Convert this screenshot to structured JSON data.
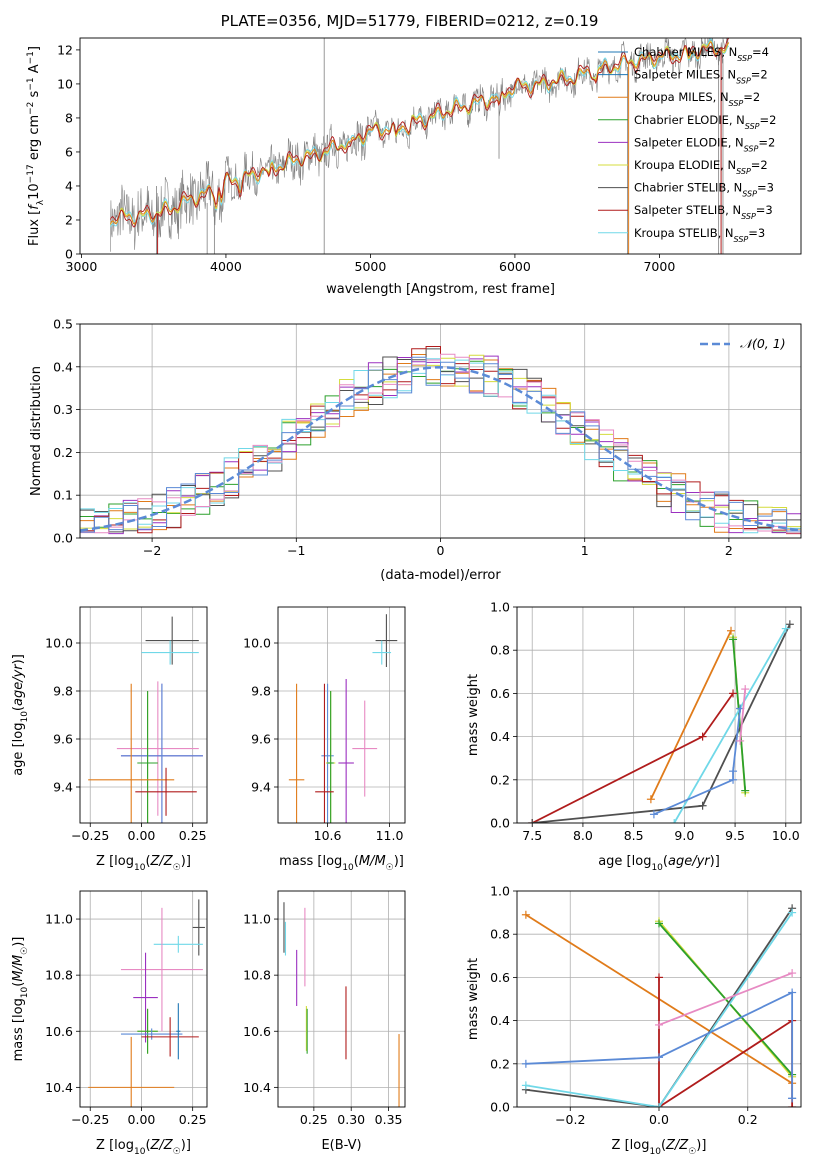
{
  "figure": {
    "title": "PLATE=0356, MJD=51779, FIBERID=0212, z=0.19"
  },
  "colors": {
    "chabrier_miles": "#1f77b4",
    "salpeter_miles": "#1f77b4",
    "kroupa_miles": "#e07b1a",
    "chabrier_elodie": "#2ca02c",
    "salpeter_elodie": "#9b30c0",
    "kroupa_elodie": "#d4dc3c",
    "chabrier_stelib": "#505050",
    "salpeter_stelib": "#b01c1c",
    "kroupa_stelib": "#70d8e8",
    "pink": "#e78ac3",
    "blue": "#5b8ad6",
    "gray_spectrum": "#808080",
    "normal_curve": "#5b8ad6"
  },
  "chart_data": [
    {
      "type": "line",
      "id": "spectrum",
      "xlabel": "wavelength [Angstrom, rest frame]",
      "ylabel": "Flux [f_λ 10^-17 erg cm^-2 s^-1 A^-1]",
      "xlim": [
        2990,
        7980
      ],
      "ylim": [
        0,
        12.7
      ],
      "xticks": [
        3000,
        4000,
        5000,
        6000,
        7000
      ],
      "yticks": [
        0,
        2,
        4,
        6,
        8,
        10,
        12
      ],
      "grid": false,
      "legend_position": "top-right",
      "legend": [
        "Chabrier MILES, N_SSP=4",
        "Salpeter MILES, N_SSP=2",
        "Kroupa MILES, N_SSP=2",
        "Chabrier ELODIE, N_SSP=2",
        "Salpeter ELODIE, N_SSP=2",
        "Kroupa ELODIE, N_SSP=2",
        "Chabrier STELIB, N_SSP=3",
        "Salpeter STELIB, N_SSP=3",
        "Kroupa STELIB, N_SSP=3"
      ],
      "continuum": {
        "x": [
          3200,
          3300,
          3500,
          3700,
          3900,
          4000,
          4200,
          4400,
          4600,
          4800,
          5000,
          5200,
          5400,
          5600,
          5800,
          6000,
          6200,
          6400,
          6600,
          6800,
          7000,
          7200,
          7400,
          7500
        ],
        "y": [
          2.0,
          2.2,
          2.3,
          3.0,
          3.7,
          4.2,
          4.7,
          5.3,
          5.8,
          6.4,
          7.2,
          7.5,
          8.0,
          8.6,
          9.0,
          9.8,
          10.0,
          10.4,
          10.9,
          11.3,
          11.6,
          11.8,
          12.2,
          11.9
        ]
      }
    },
    {
      "type": "bar",
      "id": "residual_histogram",
      "xlabel": "(data-model)/error",
      "ylabel": "Normed distribution",
      "xlim": [
        -2.5,
        2.5
      ],
      "ylim": [
        0,
        0.5
      ],
      "xticks": [
        -2,
        -1,
        0,
        1,
        2
      ],
      "yticks": [
        0.0,
        0.1,
        0.2,
        0.3,
        0.4,
        0.5
      ],
      "grid": true,
      "legend_position": "top-right",
      "legend": [
        "𝒩(0, 1)"
      ],
      "reference_curve": {
        "mean": 0,
        "sigma": 1
      }
    },
    {
      "type": "scatter",
      "id": "age_vs_Z",
      "xlabel": "Z [log10(Z/Z☉)]",
      "ylabel": "age [log10(age/yr)]",
      "xlim": [
        -0.3,
        0.32
      ],
      "ylim": [
        9.25,
        10.15
      ],
      "xticks": [
        -0.25,
        0.0,
        0.25
      ],
      "yticks": [
        9.4,
        9.6,
        9.8,
        10.0
      ],
      "grid": true,
      "points": [
        {
          "series": "chabrier_stelib",
          "x": 0.15,
          "y": 10.01,
          "xerr": 0.13,
          "yerr": 0.1
        },
        {
          "series": "kroupa_stelib",
          "x": 0.14,
          "y": 9.96,
          "xerr": 0.14,
          "yerr": 0.05
        },
        {
          "series": "pink",
          "x": 0.08,
          "y": 9.56,
          "xerr": 0.2,
          "yerr": 0.28
        },
        {
          "series": "salpeter_elodie",
          "x": 0.1,
          "y": 9.53,
          "xerr": 0.2,
          "yerr": 0.3
        },
        {
          "series": "blue",
          "x": 0.1,
          "y": 9.53,
          "xerr": 0.2,
          "yerr": 0.3
        },
        {
          "series": "kroupa_elodie",
          "x": 0.03,
          "y": 9.5,
          "xerr": 0.05,
          "yerr": 0.3
        },
        {
          "series": "chabrier_elodie",
          "x": 0.03,
          "y": 9.5,
          "xerr": 0.05,
          "yerr": 0.3
        },
        {
          "series": "kroupa_miles",
          "x": -0.05,
          "y": 9.43,
          "xerr": 0.21,
          "yerr": 0.4
        },
        {
          "series": "salpeter_stelib",
          "x": 0.12,
          "y": 9.38,
          "xerr": 0.15,
          "yerr": 0.1
        }
      ]
    },
    {
      "type": "scatter",
      "id": "age_vs_mass",
      "xlabel": "mass [log10(M/M☉)]",
      "ylabel": "",
      "xlim": [
        10.28,
        11.1
      ],
      "ylim": [
        9.25,
        10.15
      ],
      "xticks": [
        10.6,
        11.0
      ],
      "yticks": [
        9.4,
        9.6,
        9.8,
        10.0
      ],
      "grid": true,
      "points": [
        {
          "series": "chabrier_stelib",
          "x": 10.98,
          "y": 10.01,
          "xerr": 0.07,
          "yerr": 0.11
        },
        {
          "series": "kroupa_stelib",
          "x": 10.95,
          "y": 9.96,
          "xerr": 0.06,
          "yerr": 0.05
        },
        {
          "series": "pink",
          "x": 10.84,
          "y": 9.56,
          "xerr": 0.08,
          "yerr": 0.2
        },
        {
          "series": "salpeter_elodie",
          "x": 10.72,
          "y": 9.5,
          "xerr": 0.05,
          "yerr": 0.35
        },
        {
          "series": "blue",
          "x": 10.6,
          "y": 9.53,
          "xerr": 0.04,
          "yerr": 0.3
        },
        {
          "series": "kroupa_elodie",
          "x": 10.62,
          "y": 9.5,
          "xerr": 0.03,
          "yerr": 0.3
        },
        {
          "series": "chabrier_elodie",
          "x": 10.62,
          "y": 9.5,
          "xerr": 0.02,
          "yerr": 0.3
        },
        {
          "series": "kroupa_miles",
          "x": 10.4,
          "y": 9.43,
          "xerr": 0.05,
          "yerr": 0.4
        },
        {
          "series": "salpeter_stelib",
          "x": 10.58,
          "y": 9.38,
          "xerr": 0.06,
          "yerr": 0.45
        }
      ]
    },
    {
      "type": "line",
      "id": "mass_weight_vs_age",
      "xlabel": "age [log10(age/yr)]",
      "ylabel": "mass weight",
      "xlim": [
        7.35,
        10.15
      ],
      "ylim": [
        0,
        1.0
      ],
      "xticks": [
        7.5,
        8.0,
        8.5,
        9.0,
        9.5,
        10.0
      ],
      "yticks": [
        0.0,
        0.2,
        0.4,
        0.6,
        0.8,
        1.0
      ],
      "grid": true,
      "series": [
        {
          "series": "kroupa_miles",
          "x": [
            8.67,
            9.46
          ],
          "y": [
            0.11,
            0.89
          ]
        },
        {
          "series": "kroupa_elodie",
          "x": [
            9.48,
            9.6
          ],
          "y": [
            0.86,
            0.14
          ]
        },
        {
          "series": "chabrier_elodie",
          "x": [
            9.48,
            9.6
          ],
          "y": [
            0.85,
            0.15
          ]
        },
        {
          "series": "salpeter_stelib",
          "x": [
            7.5,
            9.18,
            9.48
          ],
          "y": [
            0.0,
            0.4,
            0.6
          ]
        },
        {
          "series": "chabrier_stelib",
          "x": [
            7.5,
            9.18,
            10.04
          ],
          "y": [
            0.0,
            0.08,
            0.92
          ]
        },
        {
          "series": "kroupa_stelib",
          "x": [
            8.9,
            10.0
          ],
          "y": [
            0.0,
            0.9
          ]
        },
        {
          "series": "blue",
          "x": [
            8.7,
            9.48,
            9.48,
            9.55,
            9.55
          ],
          "y": [
            0.04,
            0.2,
            0.24,
            0.53,
            0.53
          ]
        },
        {
          "series": "pink",
          "x": [
            9.55,
            9.6
          ],
          "y": [
            0.38,
            0.62
          ]
        }
      ]
    },
    {
      "type": "scatter",
      "id": "mass_vs_Z",
      "xlabel": "Z [log10(Z/Z☉)]",
      "ylabel": "mass [log10(M/M☉)]",
      "xlim": [
        -0.3,
        0.32
      ],
      "ylim": [
        10.33,
        11.1
      ],
      "xticks": [
        -0.25,
        0.0,
        0.25
      ],
      "yticks": [
        10.4,
        10.6,
        10.8,
        11.0
      ],
      "grid": true,
      "points": [
        {
          "series": "chabrier_stelib",
          "x": 0.28,
          "y": 10.97,
          "xerr": 0.03,
          "yerr": 0.1
        },
        {
          "series": "kroupa_stelib",
          "x": 0.18,
          "y": 10.91,
          "xerr": 0.12,
          "yerr": 0.03
        },
        {
          "series": "pink",
          "x": 0.1,
          "y": 10.82,
          "xerr": 0.2,
          "yerr": 0.22
        },
        {
          "series": "salpeter_elodie",
          "x": 0.02,
          "y": 10.72,
          "xerr": 0.06,
          "yerr": 0.16
        },
        {
          "series": "kroupa_elodie",
          "x": 0.03,
          "y": 10.6,
          "xerr": 0.05,
          "yerr": 0.08
        },
        {
          "series": "chabrier_elodie",
          "x": 0.03,
          "y": 10.6,
          "xerr": 0.05,
          "yerr": 0.08
        },
        {
          "series": "blue",
          "x": 0.05,
          "y": 10.59,
          "xerr": 0.15,
          "yerr": 0.02
        },
        {
          "series": "salpeter_stelib",
          "x": 0.14,
          "y": 10.58,
          "xerr": 0.14,
          "yerr": 0.07
        },
        {
          "series": "chabrier_miles",
          "x": 0.18,
          "y": 10.6,
          "xerr": 0.01,
          "yerr": 0.1
        },
        {
          "series": "kroupa_miles",
          "x": -0.05,
          "y": 10.4,
          "xerr": 0.21,
          "yerr": 0.18
        }
      ]
    },
    {
      "type": "scatter",
      "id": "mass_vs_ebv",
      "xlabel": "E(B-V)",
      "ylabel": "",
      "xlim": [
        0.202,
        0.372
      ],
      "ylim": [
        10.33,
        11.1
      ],
      "xticks": [
        0.25,
        0.3,
        0.35
      ],
      "yticks": [
        10.4,
        10.6,
        10.8,
        11.0
      ],
      "grid": true,
      "points": [
        {
          "series": "chabrier_stelib",
          "x": 0.21,
          "y": 10.97,
          "yerr": 0.09
        },
        {
          "series": "kroupa_stelib",
          "x": 0.212,
          "y": 10.93,
          "yerr": 0.06
        },
        {
          "series": "pink",
          "x": 0.238,
          "y": 10.9,
          "yerr": 0.14
        },
        {
          "series": "salpeter_elodie",
          "x": 0.227,
          "y": 10.79,
          "yerr": 0.1
        },
        {
          "series": "kroupa_elodie",
          "x": 0.24,
          "y": 10.61,
          "yerr": 0.08
        },
        {
          "series": "chabrier_elodie",
          "x": 0.241,
          "y": 10.6,
          "yerr": 0.08
        },
        {
          "series": "salpeter_stelib",
          "x": 0.293,
          "y": 10.63,
          "yerr": 0.13
        },
        {
          "series": "kroupa_miles",
          "x": 0.364,
          "y": 10.46,
          "yerr": 0.13
        }
      ]
    },
    {
      "type": "line",
      "id": "mass_weight_vs_Z",
      "xlabel": "Z [log10(Z/Z☉)]",
      "ylabel": "mass weight",
      "xlim": [
        -0.32,
        0.32
      ],
      "ylim": [
        0,
        1.0
      ],
      "xticks": [
        -0.2,
        0.0,
        0.2
      ],
      "yticks": [
        0.0,
        0.2,
        0.4,
        0.6,
        0.8,
        1.0
      ],
      "grid": true,
      "series": [
        {
          "series": "kroupa_miles",
          "x": [
            -0.3,
            0.3
          ],
          "y": [
            0.89,
            0.11
          ]
        },
        {
          "series": "kroupa_elodie",
          "x": [
            0.0,
            0.3
          ],
          "y": [
            0.86,
            0.14
          ]
        },
        {
          "series": "chabrier_elodie",
          "x": [
            0.0,
            0.3
          ],
          "y": [
            0.85,
            0.15
          ]
        },
        {
          "series": "salpeter_stelib",
          "x": [
            0.0,
            0.0,
            0.3,
            0.3
          ],
          "y": [
            0.6,
            0.0,
            0.4,
            0.0
          ]
        },
        {
          "series": "chabrier_stelib",
          "x": [
            -0.3,
            0.0,
            0.3
          ],
          "y": [
            0.08,
            0.0,
            0.92
          ]
        },
        {
          "series": "kroupa_stelib",
          "x": [
            -0.3,
            0.0,
            0.3
          ],
          "y": [
            0.1,
            0.0,
            0.9
          ]
        },
        {
          "series": "blue",
          "x": [
            -0.3,
            0.0,
            0.3,
            0.3,
            0.3
          ],
          "y": [
            0.2,
            0.23,
            0.53,
            0.04,
            0.04
          ]
        },
        {
          "series": "pink",
          "x": [
            0.0,
            0.3
          ],
          "y": [
            0.38,
            0.62
          ]
        }
      ]
    }
  ]
}
